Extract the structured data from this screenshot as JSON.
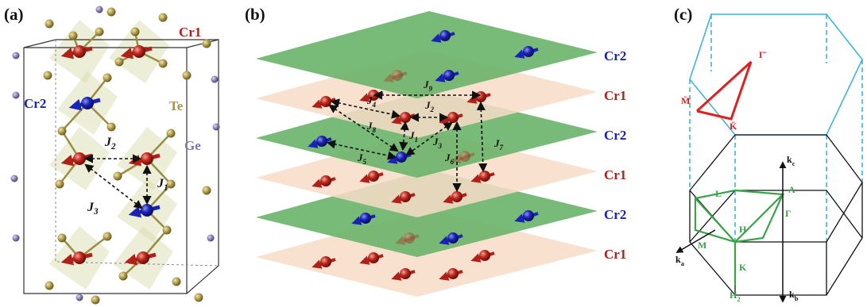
{
  "panel_a": {
    "label": "(a)",
    "atoms": {
      "cr1": "Cr1",
      "te": "Te",
      "cr2": "Cr2",
      "ge": "Ge"
    },
    "couplings": [
      {
        "symbol": "J",
        "sub": "2"
      },
      {
        "symbol": "J",
        "sub": "1"
      },
      {
        "symbol": "J",
        "sub": "3"
      }
    ]
  },
  "panel_b": {
    "label": "(b)",
    "layers": [
      "Cr2",
      "Cr1",
      "Cr2",
      "Cr1",
      "Cr2",
      "Cr1"
    ],
    "couplings": [
      {
        "symbol": "J",
        "sub": "9"
      },
      {
        "symbol": "J",
        "sub": "4"
      },
      {
        "symbol": "J",
        "sub": "2"
      },
      {
        "symbol": "J",
        "sub": "8"
      },
      {
        "symbol": "J",
        "sub": "1"
      },
      {
        "symbol": "J",
        "sub": "3"
      },
      {
        "symbol": "J",
        "sub": "7"
      },
      {
        "symbol": "J",
        "sub": "6"
      },
      {
        "symbol": "J",
        "sub": "5"
      }
    ]
  },
  "panel_c": {
    "label": "(c)",
    "surface_points": [
      "Γ̄",
      "M̄",
      "K̄"
    ],
    "axes": [
      {
        "symbol": "k",
        "sub": "c"
      },
      {
        "symbol": "k",
        "sub": "a"
      },
      {
        "symbol": "k",
        "sub": "b"
      }
    ],
    "bulk_points": [
      "A",
      "Γ",
      "L",
      "M",
      "H",
      "K"
    ],
    "bulk_h2": {
      "symbol": "H",
      "sub": "2"
    }
  }
}
